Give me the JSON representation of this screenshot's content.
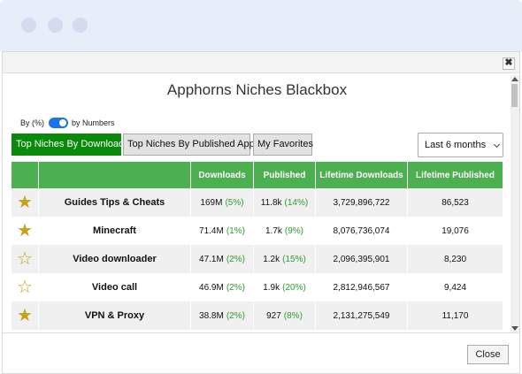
{
  "dialog": {
    "title": "Apphorns Niches Blackbox",
    "close_glyph": "✖",
    "close_button": "Close"
  },
  "toggle": {
    "left_label": "By (%)",
    "right_label": "by Numbers",
    "state": "on"
  },
  "tabs": [
    {
      "label": "Top Niches By Downloads",
      "active": true
    },
    {
      "label": "Top Niches By Published Apps",
      "active": false
    },
    {
      "label": "My Favorites",
      "active": false
    }
  ],
  "period_select": {
    "value": "Last 6 months"
  },
  "table": {
    "headers": [
      "",
      "",
      "Downloads",
      "Published",
      "Lifetime Downloads",
      "Lifetime Published"
    ],
    "rows": [
      {
        "favorite": true,
        "niche": "Guides Tips & Cheats",
        "downloads": "169M",
        "downloads_pct": "(5%)",
        "published": "11.8k",
        "published_pct": "(14%)",
        "lifetime_downloads": "3,729,896,722",
        "lifetime_published": "86,523"
      },
      {
        "favorite": true,
        "niche": "Minecraft",
        "downloads": "71.4M",
        "downloads_pct": "(1%)",
        "published": "1.7k",
        "published_pct": "(9%)",
        "lifetime_downloads": "8,076,736,074",
        "lifetime_published": "19,076"
      },
      {
        "favorite": false,
        "niche": "Video downloader",
        "downloads": "47.1M",
        "downloads_pct": "(2%)",
        "published": "1.2k",
        "published_pct": "(15%)",
        "lifetime_downloads": "2,096,395,901",
        "lifetime_published": "8,230"
      },
      {
        "favorite": false,
        "niche": "Video call",
        "downloads": "46.9M",
        "downloads_pct": "(2%)",
        "published": "1.9k",
        "published_pct": "(20%)",
        "lifetime_downloads": "2,812,946,567",
        "lifetime_published": "9,424"
      },
      {
        "favorite": true,
        "niche": "VPN & Proxy",
        "downloads": "38.8M",
        "downloads_pct": "(2%)",
        "published": "927",
        "published_pct": "(8%)",
        "lifetime_downloads": "2,131,275,549",
        "lifetime_published": "11,170"
      }
    ]
  },
  "colors": {
    "header_green": "#4caf50",
    "active_tab_green": "#0a8a0a",
    "star_gold": "#c8a11a",
    "pct_green": "#2e9d2e",
    "toggle_blue": "#1a73e8"
  },
  "icons": {
    "star_filled": "star-filled-icon",
    "star_empty": "star-outline-icon"
  }
}
